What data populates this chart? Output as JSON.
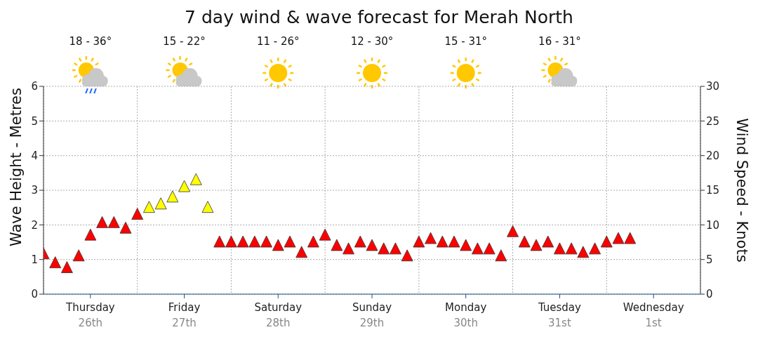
{
  "chart_data": {
    "type": "scatter",
    "title": "7 day wind & wave forecast for Merah North",
    "annotations": [
      "18 - 36°",
      "15 - 22°",
      "11 - 26°",
      "12 - 30°",
      "15 - 31°",
      "16 - 31°"
    ],
    "ylabel": "Wave Height - Metres",
    "y2label": "Wind Speed - Knots",
    "categories": [
      null,
      null,
      null,
      null,
      "Thursday 26th",
      null,
      null,
      null,
      null,
      null,
      null,
      null,
      "Friday 27th",
      null,
      null,
      null,
      null,
      null,
      null,
      null,
      "Saturday 28th",
      null,
      null,
      null,
      null,
      null,
      null,
      null,
      "Sunday 29th",
      null,
      null,
      null,
      null,
      null,
      null,
      null,
      "Monday 30th",
      null,
      null,
      null,
      null,
      null,
      null,
      null,
      "Tuesday 31st",
      null,
      null,
      null,
      null,
      null,
      null,
      null,
      "Wednesday 1st",
      null,
      null,
      null
    ],
    "series": [
      {
        "axis": "y2",
        "marker": "triangle",
        "values": [
          5.8,
          4.5,
          3.8,
          5.5,
          8.5,
          10.3,
          10.3,
          9.5,
          11.5,
          12.5,
          13,
          14,
          15.5,
          16.5,
          12.5,
          7.5,
          7.5,
          7.5,
          7.5,
          7.5,
          7,
          7.5,
          6,
          7.5,
          8.5,
          7,
          6.5,
          7.5,
          7,
          6.5,
          6.5,
          5.5,
          7.5,
          8,
          7.5,
          7.5,
          7,
          6.5,
          6.5,
          5.5,
          9,
          7.5,
          7,
          7.5,
          6.5,
          6.5,
          6,
          6.5,
          7.5,
          8,
          8,
          null,
          null,
          null,
          null,
          null
        ],
        "colors": [
          "#ff0000",
          "#ff0000",
          "#ff0000",
          "#ff0000",
          "#ff0000",
          "#ff0000",
          "#ff0000",
          "#ff0000",
          "#ff0000",
          "#ffff00",
          "#ffff00",
          "#ffff00",
          "#ffff00",
          "#ffff00",
          "#ffff00",
          "#ff0000",
          "#ff0000",
          "#ff0000",
          "#ff0000",
          "#ff0000",
          "#ff0000",
          "#ff0000",
          "#ff0000",
          "#ff0000",
          "#ff0000",
          "#ff0000",
          "#ff0000",
          "#ff0000",
          "#ff0000",
          "#ff0000",
          "#ff0000",
          "#ff0000",
          "#ff0000",
          "#ff0000",
          "#ff0000",
          "#ff0000",
          "#ff0000",
          "#ff0000",
          "#ff0000",
          "#ff0000",
          "#ff0000",
          "#ff0000",
          "#ff0000",
          "#ff0000",
          "#ff0000",
          "#ff0000",
          "#ff0000",
          "#ff0000",
          "#ff0000",
          "#ff0000",
          "#ff0000",
          null,
          null,
          null,
          null,
          null
        ]
      }
    ],
    "ylim": [
      0,
      6
    ],
    "yticks": [
      0,
      1,
      2,
      3,
      4,
      5,
      6
    ],
    "y2lim": [
      0,
      30
    ],
    "y2ticks": [
      0,
      5,
      10,
      15,
      20,
      25,
      30
    ],
    "grid": true,
    "legend": false
  }
}
